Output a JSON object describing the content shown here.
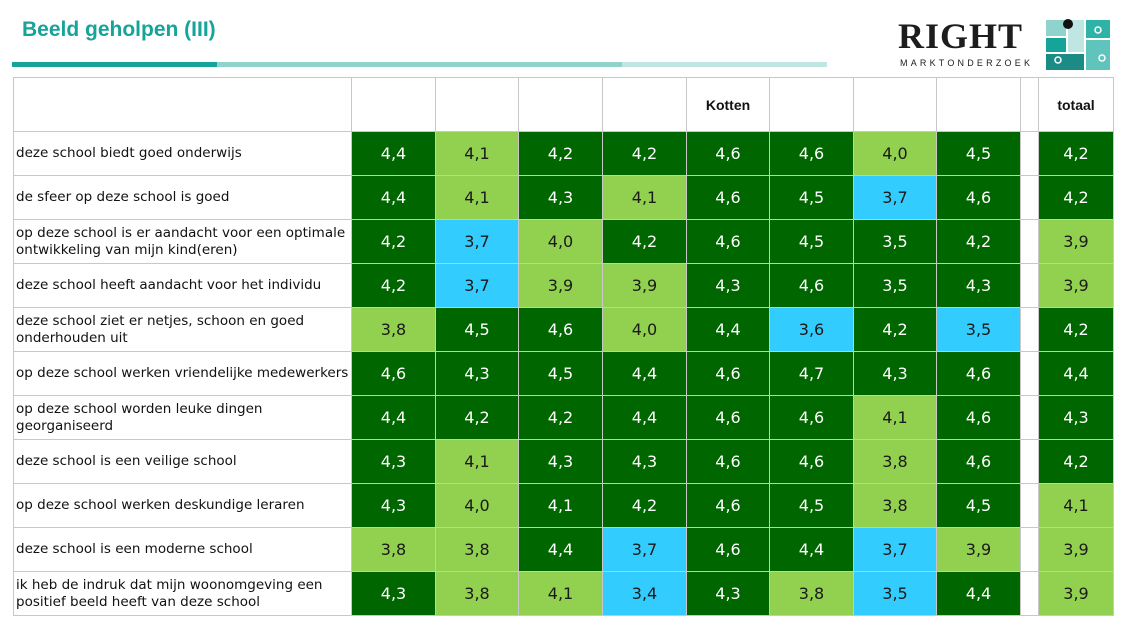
{
  "header": {
    "title": "Beeld geholpen (III)"
  },
  "logo": {
    "name": "RIGHT",
    "tagline": "MARKTONDERZOEK"
  },
  "colors": {
    "accent": "#16a39a",
    "dark_green": "#006600",
    "light_green": "#92d050",
    "blue": "#33ccff"
  },
  "table": {
    "columns": [
      "",
      "",
      "",
      "",
      "Kotten",
      "",
      "",
      "",
      "totaal"
    ],
    "rows": [
      {
        "label": "deze school biedt goed onderwijs",
        "values": [
          "4,4",
          "4,1",
          "4,2",
          "4,2",
          "4,6",
          "4,6",
          "4,0",
          "4,5",
          "4,2"
        ],
        "colors": [
          "dg",
          "lg",
          "dg",
          "dg",
          "dg",
          "dg",
          "lg",
          "dg",
          "dg"
        ]
      },
      {
        "label": "de sfeer op deze school is goed",
        "values": [
          "4,4",
          "4,1",
          "4,3",
          "4,1",
          "4,6",
          "4,5",
          "3,7",
          "4,6",
          "4,2"
        ],
        "colors": [
          "dg",
          "lg",
          "dg",
          "lg",
          "dg",
          "dg",
          "bl",
          "dg",
          "dg"
        ]
      },
      {
        "label": "op deze school is er aandacht voor een optimale ontwikkeling van mijn kind(eren)",
        "values": [
          "4,2",
          "3,7",
          "4,0",
          "4,2",
          "4,6",
          "4,5",
          "3,5",
          "4,2",
          "3,9"
        ],
        "colors": [
          "dg",
          "bl",
          "lg",
          "dg",
          "dg",
          "dg",
          "dg",
          "dg",
          "lg"
        ]
      },
      {
        "label": "deze school heeft aandacht voor het individu",
        "values": [
          "4,2",
          "3,7",
          "3,9",
          "3,9",
          "4,3",
          "4,6",
          "3,5",
          "4,3",
          "3,9"
        ],
        "colors": [
          "dg",
          "bl",
          "lg",
          "lg",
          "dg",
          "dg",
          "dg",
          "dg",
          "lg"
        ]
      },
      {
        "label": "deze school ziet er netjes, schoon en goed onderhouden uit",
        "values": [
          "3,8",
          "4,5",
          "4,6",
          "4,0",
          "4,4",
          "3,6",
          "4,2",
          "3,5",
          "4,2"
        ],
        "colors": [
          "lg",
          "dg",
          "dg",
          "lg",
          "dg",
          "bl",
          "dg",
          "bl",
          "dg"
        ]
      },
      {
        "label": "op deze school werken vriendelijke medewerkers",
        "values": [
          "4,6",
          "4,3",
          "4,5",
          "4,4",
          "4,6",
          "4,7",
          "4,3",
          "4,6",
          "4,4"
        ],
        "colors": [
          "dg",
          "dg",
          "dg",
          "dg",
          "dg",
          "dg",
          "dg",
          "dg",
          "dg"
        ]
      },
      {
        "label": "op deze school worden leuke dingen georganiseerd",
        "values": [
          "4,4",
          "4,2",
          "4,2",
          "4,4",
          "4,6",
          "4,6",
          "4,1",
          "4,6",
          "4,3"
        ],
        "colors": [
          "dg",
          "dg",
          "dg",
          "dg",
          "dg",
          "dg",
          "lg",
          "dg",
          "dg"
        ]
      },
      {
        "label": "deze school is een veilige school",
        "values": [
          "4,3",
          "4,1",
          "4,3",
          "4,3",
          "4,6",
          "4,6",
          "3,8",
          "4,6",
          "4,2"
        ],
        "colors": [
          "dg",
          "lg",
          "dg",
          "dg",
          "dg",
          "dg",
          "lg",
          "dg",
          "dg"
        ]
      },
      {
        "label": "op deze school werken deskundige leraren",
        "values": [
          "4,3",
          "4,0",
          "4,1",
          "4,2",
          "4,6",
          "4,5",
          "3,8",
          "4,5",
          "4,1"
        ],
        "colors": [
          "dg",
          "lg",
          "dg",
          "dg",
          "dg",
          "dg",
          "lg",
          "dg",
          "lg"
        ]
      },
      {
        "label": "deze school is een moderne school",
        "values": [
          "3,8",
          "3,8",
          "4,4",
          "3,7",
          "4,6",
          "4,4",
          "3,7",
          "3,9",
          "3,9"
        ],
        "colors": [
          "lg",
          "lg",
          "dg",
          "bl",
          "dg",
          "dg",
          "bl",
          "lg",
          "lg"
        ]
      },
      {
        "label": "ik heb de indruk dat mijn woonomgeving een positief beeld heeft van deze school",
        "values": [
          "4,3",
          "3,8",
          "4,1",
          "3,4",
          "4,3",
          "3,8",
          "3,5",
          "4,4",
          "3,9"
        ],
        "colors": [
          "dg",
          "lg",
          "lg",
          "bl",
          "dg",
          "lg",
          "bl",
          "dg",
          "lg"
        ]
      }
    ]
  }
}
